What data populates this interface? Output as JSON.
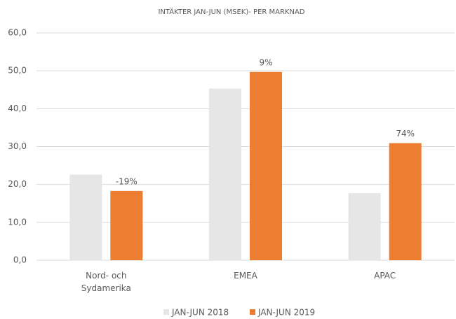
{
  "chart_data": {
    "type": "bar",
    "title": "INTÄKTER JAN-JUN  (MSEK)- PER MARKNAD",
    "categories": [
      "Nord- och Sydamerika",
      "EMEA",
      "APAC"
    ],
    "series": [
      {
        "name": "JAN-JUN 2018",
        "color": "#e7e6e6",
        "values": [
          22.6,
          45.3,
          17.7
        ]
      },
      {
        "name": "JAN-JUN 2019",
        "color": "#ed7d31",
        "values": [
          18.3,
          49.7,
          30.9
        ]
      }
    ],
    "annotations": [
      "-19%",
      "9%",
      "74%"
    ],
    "ylim": [
      0,
      60
    ],
    "yticks": [
      {
        "value": 0,
        "label": "0,0"
      },
      {
        "value": 10,
        "label": "10,0"
      },
      {
        "value": 20,
        "label": "20,0"
      },
      {
        "value": 30,
        "label": "30,0"
      },
      {
        "value": 40,
        "label": "40,0"
      },
      {
        "value": 50,
        "label": "50,0"
      },
      {
        "value": 60,
        "label": "60,0"
      }
    ],
    "grid": true,
    "legend": "bottom"
  }
}
